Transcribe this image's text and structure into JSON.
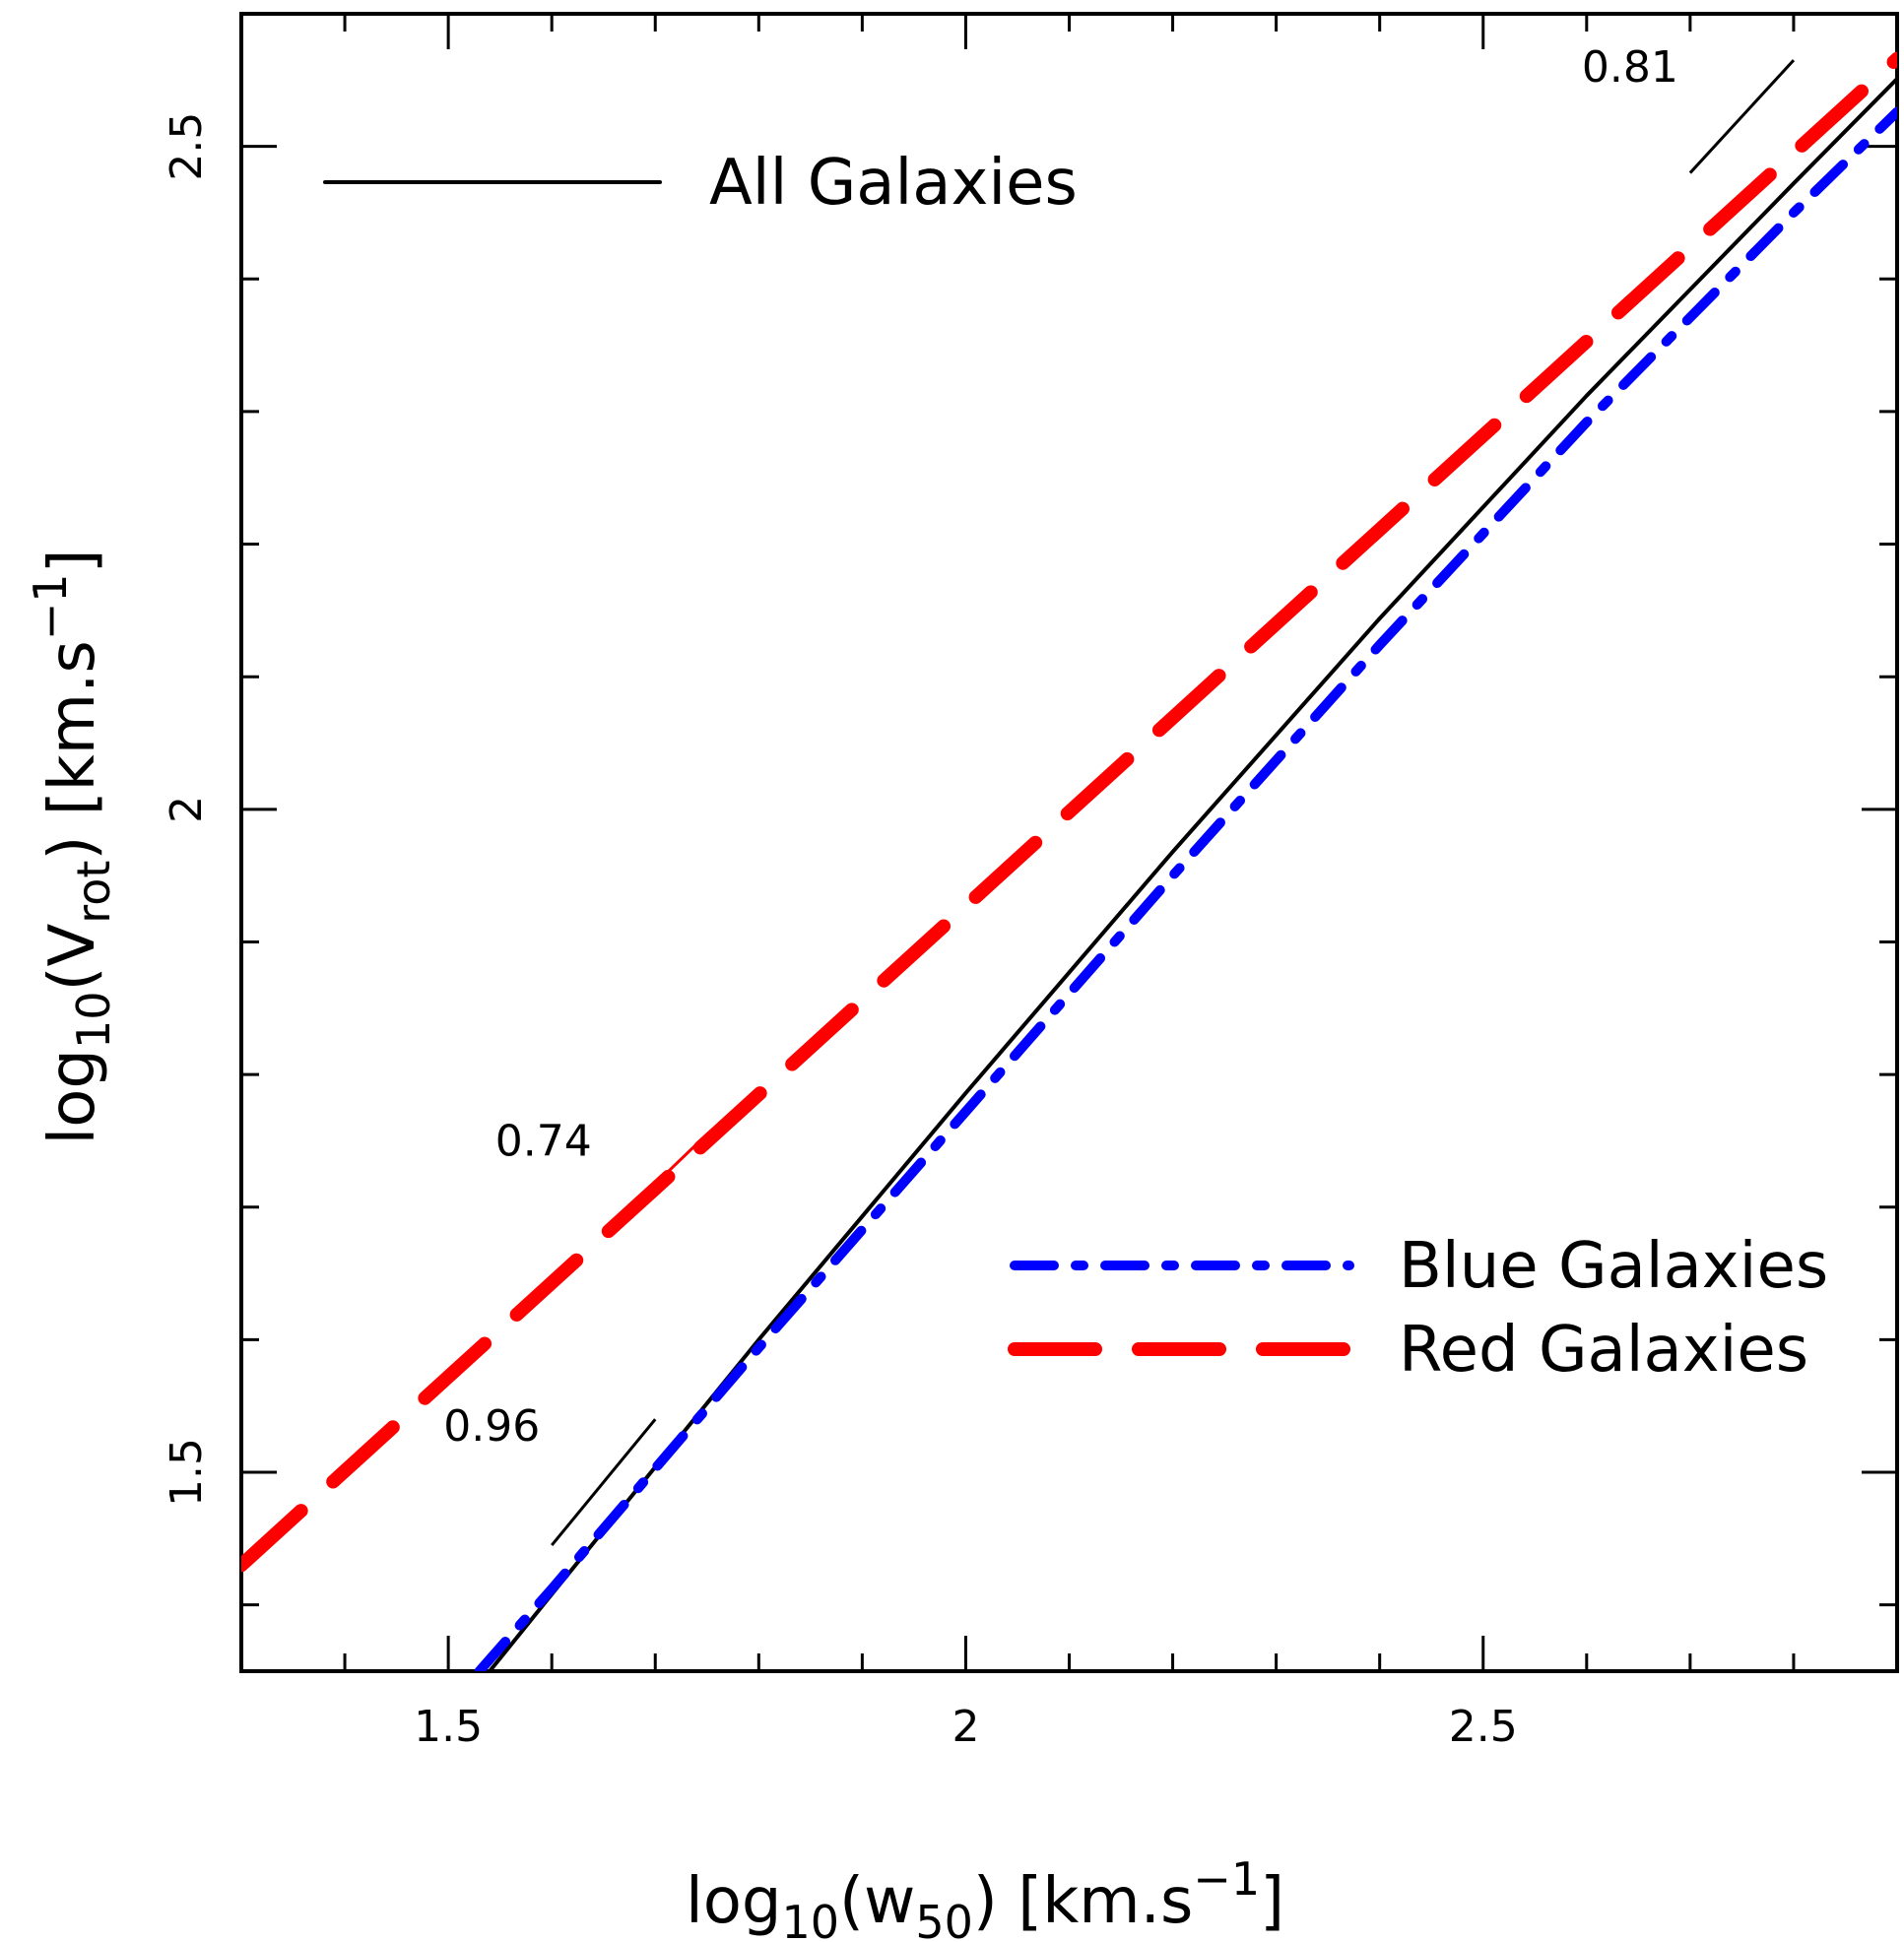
{
  "chart_data": {
    "type": "line",
    "xlabel": {
      "base": "log",
      "sub1": "10",
      "mid": "(w",
      "sub2": "50",
      "unit": ") [km.s",
      "sup": "−1",
      "end": "]"
    },
    "ylabel": {
      "base": "log",
      "sub1": "10",
      "mid": "(V",
      "sub2": "rot",
      "unit": ") [km.s",
      "sup": "−1",
      "end": "]"
    },
    "xlim": [
      1.3,
      2.9
    ],
    "ylim": [
      1.35,
      2.6
    ],
    "x_ticks": [
      1.5,
      2,
      2.5
    ],
    "x_tick_labels": [
      "1.5",
      "2",
      "2.5"
    ],
    "x_minor_step": 0.1,
    "y_ticks": [
      1.5,
      2,
      2.5
    ],
    "y_tick_labels": [
      "1.5",
      "2",
      "2.5"
    ],
    "y_minor_step": 0.1,
    "series": [
      {
        "name": "All Galaxies",
        "color": "#000000",
        "style": "solid",
        "x": [
          1.54,
          1.6,
          1.8,
          2.0,
          2.2,
          2.4,
          2.6,
          2.8,
          2.9
        ],
        "y": [
          1.35,
          1.408,
          1.6,
          1.786,
          1.968,
          2.144,
          2.312,
          2.472,
          2.551
        ]
      },
      {
        "name": "Blue Galaxies",
        "color": "#0000ff",
        "style": "dashdot",
        "x": [
          1.53,
          1.6,
          1.8,
          2.0,
          2.2,
          2.4,
          2.6,
          2.8,
          2.9
        ],
        "y": [
          1.35,
          1.412,
          1.594,
          1.772,
          1.95,
          2.124,
          2.292,
          2.45,
          2.526
        ]
      },
      {
        "name": "Red Galaxies",
        "color": "#ff0000",
        "style": "dashed",
        "x": [
          1.3,
          1.5,
          1.7,
          1.9,
          2.1,
          2.3,
          2.5,
          2.7,
          2.9
        ],
        "y": [
          1.43,
          1.572,
          1.714,
          1.856,
          1.998,
          2.14,
          2.282,
          2.424,
          2.566
        ]
      }
    ],
    "legend": [
      {
        "label": "All Galaxies",
        "color": "#000000",
        "style": "solid",
        "position": "top-left"
      },
      {
        "label": "Blue Galaxies",
        "color": "#0000ff",
        "style": "dashdot",
        "position": "bottom-right"
      },
      {
        "label": "Red Galaxies",
        "color": "#ff0000",
        "style": "dashed",
        "position": "bottom-right"
      }
    ],
    "slope_annotations": [
      {
        "label": "0.81",
        "color": "#000000",
        "x1": 2.7,
        "y1": 2.48,
        "x2": 2.8,
        "y2": 2.565
      },
      {
        "label": "0.74",
        "color": "#ff0000",
        "x1": 1.65,
        "y1": 1.68,
        "x2": 1.75,
        "y2": 1.755
      },
      {
        "label": "0.96",
        "color": "#000000",
        "x1": 1.6,
        "y1": 1.445,
        "x2": 1.7,
        "y2": 1.54
      }
    ]
  }
}
